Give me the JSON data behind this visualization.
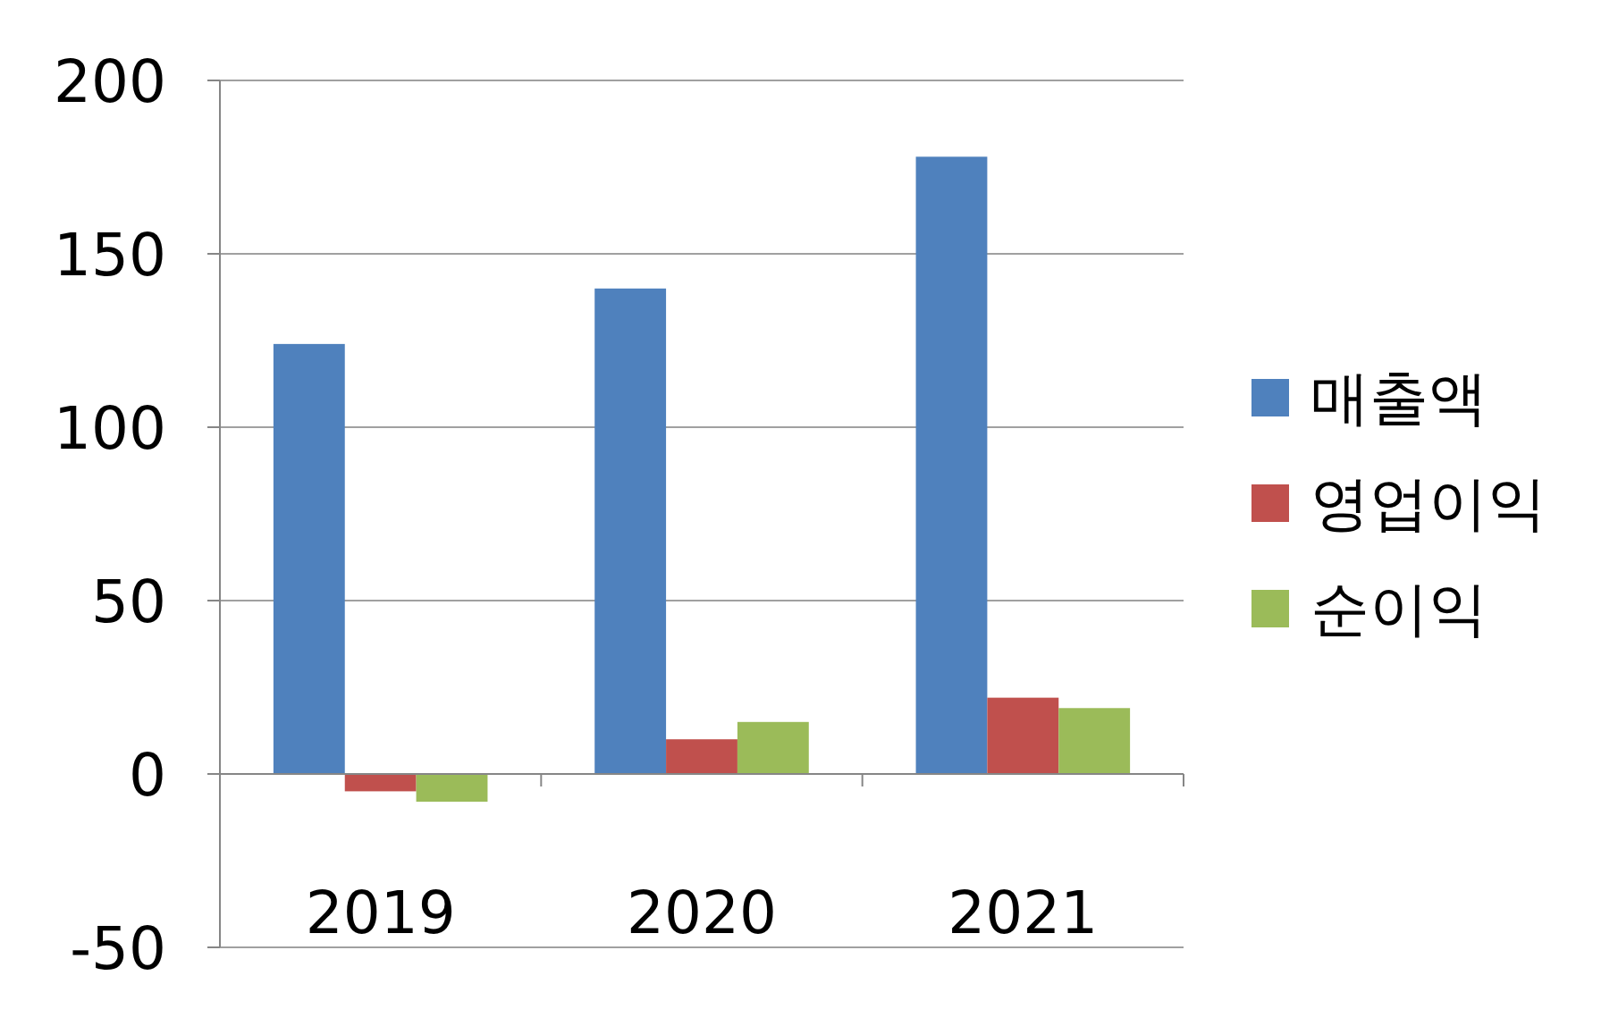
{
  "chart_data": {
    "type": "bar",
    "categories": [
      "2019",
      "2020",
      "2021"
    ],
    "series": [
      {
        "name": "매출액",
        "color": "#4f81bd",
        "values": [
          124,
          140,
          178
        ]
      },
      {
        "name": "영업이익",
        "color": "#c0504d",
        "values": [
          -5,
          10,
          22
        ]
      },
      {
        "name": "순이익",
        "color": "#9bbb59",
        "values": [
          -8,
          15,
          19
        ]
      }
    ],
    "ylim": [
      -50,
      200
    ],
    "yticks": [
      -50,
      0,
      50,
      100,
      150,
      200
    ],
    "grid": "y",
    "legend": "right"
  }
}
